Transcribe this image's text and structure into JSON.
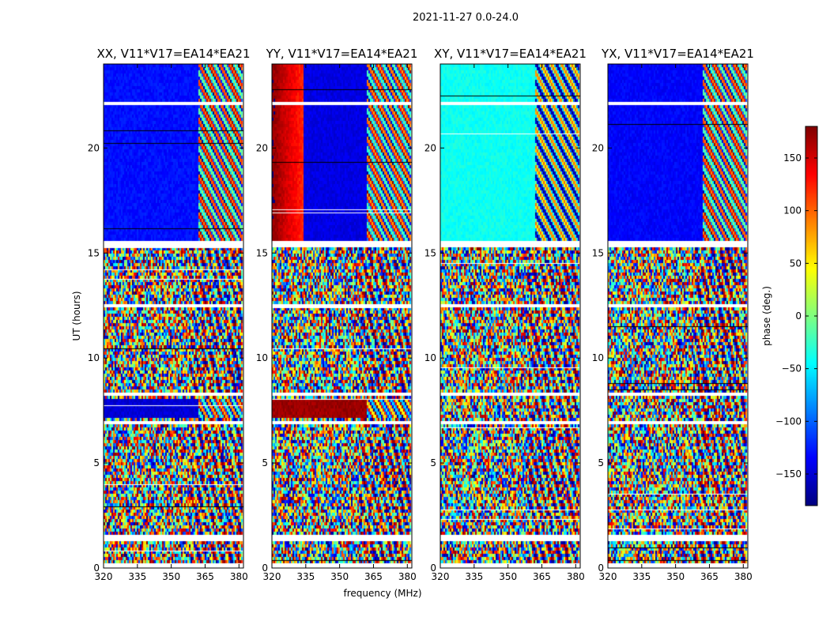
{
  "figure": {
    "suptitle": "2021-11-27 0.0-24.0"
  },
  "chart_data": {
    "type": "heatmap",
    "title": "2021-11-27 0.0-24.0",
    "xlabel": "frequency (MHz)",
    "ylabel": "UT (hours)",
    "xlim": [
      320,
      382
    ],
    "ylim": [
      0,
      24
    ],
    "x_ticks": [
      "320",
      "335",
      "350",
      "365",
      "380"
    ],
    "x_tick_values": [
      320,
      335,
      350,
      365,
      380
    ],
    "y_ticks": [
      "0",
      "5",
      "10",
      "15",
      "20"
    ],
    "y_tick_values": [
      0,
      5,
      10,
      15,
      20
    ],
    "colorscale": "jet",
    "panels": [
      {
        "title": "XX, V11*V17=EA14*EA21",
        "polarization": "XX",
        "coherent_phase": -130,
        "early_phase": -150
      },
      {
        "title": "YY, V11*V17=EA14*EA21",
        "polarization": "YY",
        "coherent_phase": -145,
        "early_phase": 170
      },
      {
        "title": "XY, V11*V17=EA14*EA21",
        "polarization": "XY",
        "coherent_phase": -40,
        "early_phase": null
      },
      {
        "title": "YX, V11*V17=EA14*EA21",
        "polarization": "YX",
        "coherent_phase": -135,
        "early_phase": null
      }
    ],
    "colorbar": {
      "label": "phase (deg.)",
      "range": [
        -180,
        180
      ],
      "ticks": [
        "150",
        "100",
        "50",
        "0",
        "−50",
        "−100",
        "−150"
      ],
      "tick_values": [
        150,
        100,
        50,
        0,
        -50,
        -100,
        -150
      ]
    },
    "flagged_ut_ranges": [
      [
        0.0,
        0.3
      ],
      [
        1.35,
        1.65
      ],
      [
        3.35,
        3.45
      ],
      [
        6.9,
        7.0
      ],
      [
        8.2,
        8.35
      ],
      [
        12.45,
        12.55
      ],
      [
        13.55,
        13.65
      ],
      [
        15.25,
        15.55
      ],
      [
        22.1,
        22.15
      ]
    ]
  }
}
